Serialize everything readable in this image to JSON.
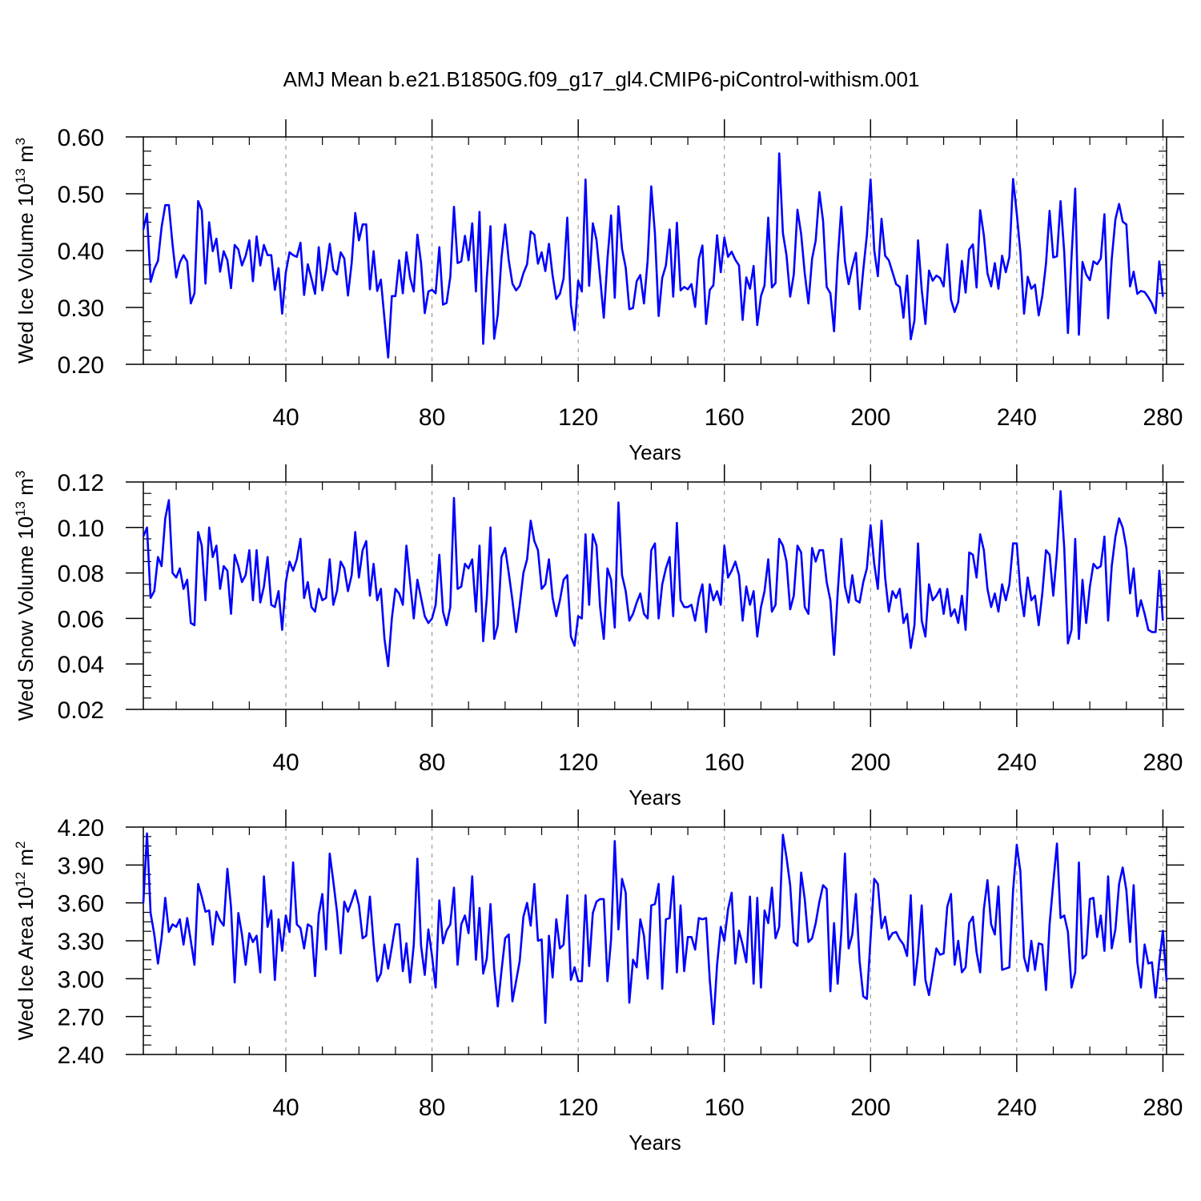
{
  "title": "AMJ Mean b.e21.B1850G.f09_g17_gl4.CMIP6-piControl-withism.001",
  "style": {
    "line_color": "#0000ff",
    "grid_color": "#888888",
    "axis_color": "#000000"
  },
  "chart_data": [
    {
      "type": "line",
      "xlabel": "Years",
      "ylabel": {
        "text": "Wed Ice Volume 10",
        "sup": "13",
        "unit": " m",
        "unit_sup": "3"
      },
      "xlim": [
        1,
        281
      ],
      "ylim": [
        0.2,
        0.6
      ],
      "x_ticks": [
        40,
        80,
        120,
        160,
        200,
        240,
        280
      ],
      "x_tick_labels": [
        "40",
        "80",
        "120",
        "160",
        "200",
        "240",
        "280"
      ],
      "y_ticks": [
        0.2,
        0.3,
        0.4,
        0.5,
        0.6
      ],
      "y_tick_labels": [
        "0.20",
        "0.30",
        "0.40",
        "0.50",
        "0.60"
      ],
      "grid": "vertical dashed at x ticks",
      "series": [
        {
          "values": [
            0.437,
            0.465,
            0.345,
            0.368,
            0.382,
            0.441,
            0.48,
            0.48,
            0.411,
            0.353,
            0.379,
            0.392,
            0.381,
            0.307,
            0.325,
            0.487,
            0.471,
            0.342,
            0.45,
            0.399,
            0.421,
            0.363,
            0.399,
            0.383,
            0.334,
            0.41,
            0.402,
            0.374,
            0.391,
            0.418,
            0.346,
            0.425,
            0.374,
            0.41,
            0.392,
            0.392,
            0.331,
            0.369,
            0.289,
            0.362,
            0.397,
            0.392,
            0.389,
            0.414,
            0.322,
            0.376,
            0.351,
            0.324,
            0.406,
            0.33,
            0.365,
            0.412,
            0.366,
            0.358,
            0.397,
            0.386,
            0.321,
            0.378,
            0.466,
            0.418,
            0.446,
            0.446,
            0.332,
            0.399,
            0.329,
            0.349,
            0.28,
            0.212,
            0.32,
            0.32,
            0.383,
            0.325,
            0.397,
            0.352,
            0.328,
            0.428,
            0.378,
            0.29,
            0.328,
            0.331,
            0.325,
            0.406,
            0.305,
            0.308,
            0.354,
            0.477,
            0.378,
            0.381,
            0.426,
            0.383,
            0.448,
            0.328,
            0.468,
            0.236,
            0.352,
            0.443,
            0.245,
            0.287,
            0.387,
            0.446,
            0.383,
            0.342,
            0.33,
            0.338,
            0.36,
            0.376,
            0.434,
            0.428,
            0.377,
            0.397,
            0.364,
            0.412,
            0.356,
            0.315,
            0.324,
            0.351,
            0.458,
            0.305,
            0.26,
            0.347,
            0.328,
            0.525,
            0.338,
            0.448,
            0.419,
            0.353,
            0.282,
            0.385,
            0.462,
            0.317,
            0.478,
            0.403,
            0.37,
            0.297,
            0.299,
            0.346,
            0.357,
            0.307,
            0.383,
            0.513,
            0.43,
            0.285,
            0.352,
            0.374,
            0.437,
            0.319,
            0.449,
            0.33,
            0.336,
            0.332,
            0.341,
            0.301,
            0.385,
            0.409,
            0.271,
            0.331,
            0.339,
            0.427,
            0.362,
            0.423,
            0.389,
            0.398,
            0.384,
            0.374,
            0.278,
            0.353,
            0.333,
            0.373,
            0.269,
            0.32,
            0.339,
            0.458,
            0.335,
            0.343,
            0.571,
            0.431,
            0.392,
            0.319,
            0.358,
            0.472,
            0.429,
            0.36,
            0.307,
            0.386,
            0.418,
            0.503,
            0.452,
            0.336,
            0.325,
            0.258,
            0.383,
            0.477,
            0.381,
            0.341,
            0.372,
            0.396,
            0.297,
            0.366,
            0.427,
            0.525,
            0.401,
            0.355,
            0.456,
            0.391,
            0.383,
            0.362,
            0.341,
            0.336,
            0.282,
            0.356,
            0.244,
            0.277,
            0.418,
            0.331,
            0.271,
            0.365,
            0.347,
            0.356,
            0.352,
            0.337,
            0.411,
            0.314,
            0.292,
            0.31,
            0.382,
            0.326,
            0.402,
            0.411,
            0.335,
            0.471,
            0.427,
            0.36,
            0.337,
            0.378,
            0.333,
            0.391,
            0.362,
            0.389,
            0.526,
            0.465,
            0.397,
            0.289,
            0.354,
            0.333,
            0.34,
            0.286,
            0.32,
            0.377,
            0.47,
            0.388,
            0.39,
            0.487,
            0.397,
            0.255,
            0.389,
            0.509,
            0.252,
            0.38,
            0.358,
            0.348,
            0.381,
            0.376,
            0.386,
            0.464,
            0.281,
            0.385,
            0.455,
            0.482,
            0.451,
            0.446,
            0.337,
            0.363,
            0.324,
            0.329,
            0.327,
            0.318,
            0.307,
            0.29,
            0.381,
            0.319
          ]
        }
      ]
    },
    {
      "type": "line",
      "xlabel": "Years",
      "ylabel": {
        "text": "Wed Snow Volume 10",
        "sup": "13",
        "unit": " m",
        "unit_sup": "3"
      },
      "xlim": [
        1,
        281
      ],
      "ylim": [
        0.02,
        0.12
      ],
      "x_ticks": [
        40,
        80,
        120,
        160,
        200,
        240,
        280
      ],
      "x_tick_labels": [
        "40",
        "80",
        "120",
        "160",
        "200",
        "240",
        "280"
      ],
      "y_ticks": [
        0.02,
        0.04,
        0.06,
        0.08,
        0.1,
        0.12
      ],
      "y_tick_labels": [
        "0.02",
        "0.04",
        "0.06",
        "0.08",
        "0.10",
        "0.12"
      ],
      "grid": "vertical dashed at x ticks",
      "series": [
        {
          "values": [
            0.096,
            0.1,
            0.069,
            0.072,
            0.087,
            0.083,
            0.104,
            0.112,
            0.08,
            0.078,
            0.082,
            0.073,
            0.077,
            0.058,
            0.057,
            0.098,
            0.092,
            0.068,
            0.1,
            0.087,
            0.092,
            0.073,
            0.083,
            0.081,
            0.062,
            0.088,
            0.083,
            0.076,
            0.079,
            0.09,
            0.068,
            0.09,
            0.067,
            0.074,
            0.087,
            0.066,
            0.065,
            0.072,
            0.055,
            0.076,
            0.085,
            0.081,
            0.086,
            0.095,
            0.069,
            0.076,
            0.065,
            0.063,
            0.073,
            0.068,
            0.069,
            0.086,
            0.066,
            0.072,
            0.085,
            0.082,
            0.072,
            0.079,
            0.098,
            0.078,
            0.09,
            0.094,
            0.07,
            0.084,
            0.068,
            0.073,
            0.051,
            0.039,
            0.06,
            0.073,
            0.071,
            0.066,
            0.092,
            0.076,
            0.06,
            0.077,
            0.069,
            0.061,
            0.058,
            0.06,
            0.066,
            0.088,
            0.063,
            0.057,
            0.065,
            0.113,
            0.073,
            0.074,
            0.084,
            0.082,
            0.086,
            0.063,
            0.092,
            0.05,
            0.069,
            0.1,
            0.051,
            0.057,
            0.087,
            0.091,
            0.08,
            0.068,
            0.054,
            0.066,
            0.08,
            0.086,
            0.103,
            0.094,
            0.09,
            0.073,
            0.075,
            0.086,
            0.069,
            0.061,
            0.068,
            0.077,
            0.079,
            0.052,
            0.048,
            0.061,
            0.06,
            0.097,
            0.066,
            0.097,
            0.092,
            0.065,
            0.051,
            0.082,
            0.077,
            0.056,
            0.111,
            0.079,
            0.072,
            0.059,
            0.062,
            0.067,
            0.071,
            0.062,
            0.06,
            0.09,
            0.093,
            0.06,
            0.075,
            0.082,
            0.087,
            0.061,
            0.102,
            0.068,
            0.065,
            0.065,
            0.066,
            0.059,
            0.069,
            0.075,
            0.054,
            0.075,
            0.068,
            0.072,
            0.066,
            0.092,
            0.078,
            0.081,
            0.085,
            0.079,
            0.059,
            0.074,
            0.066,
            0.072,
            0.052,
            0.065,
            0.072,
            0.086,
            0.063,
            0.066,
            0.095,
            0.092,
            0.085,
            0.064,
            0.07,
            0.092,
            0.089,
            0.065,
            0.062,
            0.091,
            0.085,
            0.09,
            0.09,
            0.076,
            0.068,
            0.044,
            0.071,
            0.095,
            0.074,
            0.067,
            0.079,
            0.068,
            0.067,
            0.076,
            0.082,
            0.101,
            0.084,
            0.073,
            0.103,
            0.078,
            0.063,
            0.072,
            0.069,
            0.073,
            0.058,
            0.062,
            0.047,
            0.057,
            0.093,
            0.059,
            0.052,
            0.075,
            0.068,
            0.07,
            0.073,
            0.062,
            0.073,
            0.061,
            0.064,
            0.058,
            0.07,
            0.055,
            0.089,
            0.088,
            0.078,
            0.097,
            0.09,
            0.073,
            0.065,
            0.071,
            0.063,
            0.075,
            0.068,
            0.075,
            0.093,
            0.093,
            0.072,
            0.061,
            0.078,
            0.068,
            0.07,
            0.057,
            0.071,
            0.09,
            0.088,
            0.07,
            0.089,
            0.116,
            0.091,
            0.049,
            0.055,
            0.095,
            0.051,
            0.077,
            0.058,
            0.074,
            0.084,
            0.082,
            0.083,
            0.096,
            0.059,
            0.083,
            0.096,
            0.104,
            0.1,
            0.091,
            0.071,
            0.082,
            0.061,
            0.068,
            0.062,
            0.055,
            0.054,
            0.054,
            0.081,
            0.059
          ]
        }
      ]
    },
    {
      "type": "line",
      "xlabel": "Years",
      "ylabel": {
        "text": "Wed Ice Area 10",
        "sup": "12",
        "unit": " m",
        "unit_sup": "2"
      },
      "xlim": [
        1,
        281
      ],
      "ylim": [
        2.4,
        4.2
      ],
      "x_ticks": [
        40,
        80,
        120,
        160,
        200,
        240,
        280
      ],
      "x_tick_labels": [
        "40",
        "80",
        "120",
        "160",
        "200",
        "240",
        "280"
      ],
      "y_ticks": [
        2.4,
        2.7,
        3.0,
        3.3,
        3.6,
        3.9,
        4.2
      ],
      "y_tick_labels": [
        "2.40",
        "2.70",
        "3.00",
        "3.30",
        "3.60",
        "3.90",
        "4.20"
      ],
      "grid": "vertical dashed at x ticks",
      "series": [
        {
          "values": [
            3.6,
            4.15,
            3.52,
            3.35,
            3.12,
            3.32,
            3.64,
            3.37,
            3.43,
            3.41,
            3.47,
            3.27,
            3.48,
            3.3,
            3.11,
            3.75,
            3.65,
            3.53,
            3.54,
            3.27,
            3.53,
            3.46,
            3.42,
            3.87,
            3.57,
            2.97,
            3.52,
            3.35,
            3.11,
            3.36,
            3.29,
            3.34,
            3.05,
            3.81,
            3.41,
            3.54,
            2.99,
            3.47,
            3.22,
            3.5,
            3.37,
            3.92,
            3.43,
            3.4,
            3.24,
            3.43,
            3.41,
            3.02,
            3.51,
            3.67,
            3.23,
            3.99,
            3.77,
            3.53,
            3.2,
            3.61,
            3.53,
            3.61,
            3.7,
            3.58,
            3.32,
            3.34,
            3.65,
            3.28,
            2.98,
            3.04,
            3.27,
            3.08,
            3.25,
            3.43,
            3.43,
            3.06,
            3.28,
            2.97,
            3.27,
            3.95,
            3.26,
            3.03,
            3.39,
            3.18,
            2.93,
            3.62,
            3.28,
            3.38,
            3.43,
            3.72,
            3.11,
            3.43,
            3.5,
            3.36,
            3.81,
            3.15,
            3.56,
            3.04,
            3.16,
            3.59,
            3.08,
            2.78,
            3.06,
            3.32,
            3.35,
            2.82,
            2.98,
            3.14,
            3.49,
            3.6,
            3.42,
            3.75,
            3.3,
            3.31,
            2.65,
            3.34,
            3.01,
            3.47,
            3.24,
            3.27,
            3.66,
            2.99,
            3.09,
            2.98,
            2.98,
            3.66,
            3.1,
            3.52,
            3.61,
            3.63,
            3.63,
            2.98,
            3.31,
            4.09,
            3.39,
            3.79,
            3.68,
            2.81,
            3.15,
            3.09,
            3.47,
            3.34,
            3.0,
            3.58,
            3.59,
            3.75,
            2.92,
            3.47,
            3.48,
            3.81,
            3.05,
            3.58,
            3.06,
            3.33,
            3.33,
            3.23,
            3.48,
            3.47,
            3.48,
            2.99,
            2.64,
            3.11,
            3.41,
            3.3,
            3.55,
            3.68,
            3.12,
            3.38,
            3.27,
            3.13,
            3.65,
            2.96,
            3.64,
            2.93,
            3.54,
            3.44,
            3.72,
            3.32,
            3.41,
            4.14,
            3.96,
            3.74,
            3.29,
            3.26,
            3.84,
            3.63,
            3.29,
            3.32,
            3.44,
            3.61,
            3.74,
            3.71,
            2.9,
            3.44,
            2.96,
            3.37,
            3.99,
            3.24,
            3.35,
            3.67,
            3.14,
            2.86,
            2.84,
            3.32,
            3.79,
            3.75,
            3.4,
            3.49,
            3.31,
            3.36,
            3.37,
            3.31,
            3.27,
            3.18,
            3.66,
            2.95,
            3.2,
            3.58,
            2.99,
            2.87,
            3.05,
            3.24,
            3.19,
            3.2,
            3.57,
            3.67,
            3.11,
            3.3,
            3.05,
            3.09,
            3.44,
            3.49,
            3.21,
            3.05,
            3.55,
            3.78,
            3.43,
            3.35,
            3.73,
            3.07,
            3.08,
            3.09,
            3.7,
            4.06,
            3.85,
            3.17,
            3.06,
            3.3,
            3.07,
            3.28,
            3.27,
            2.91,
            3.43,
            3.76,
            4.07,
            3.48,
            3.5,
            3.37,
            2.93,
            3.05,
            3.92,
            3.16,
            3.19,
            3.63,
            3.64,
            3.33,
            3.5,
            3.22,
            3.81,
            3.24,
            3.39,
            3.75,
            3.88,
            3.7,
            3.29,
            3.74,
            3.13,
            2.93,
            3.27,
            3.12,
            3.13,
            2.85,
            3.14,
            3.38,
            2.98
          ]
        }
      ]
    }
  ]
}
